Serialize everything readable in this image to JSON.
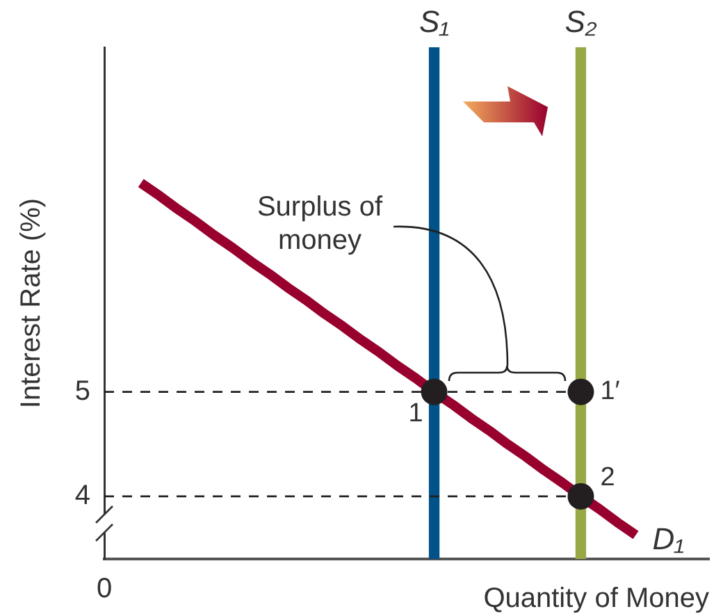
{
  "chart_data": {
    "type": "line",
    "xlabel": "Quantity of Money",
    "ylabel": "Interest Rate (%)",
    "annotations": [
      "Surplus of money"
    ],
    "categories": [
      "0",
      null,
      null,
      null,
      null,
      null,
      null,
      null,
      null,
      null,
      null,
      null,
      null,
      null,
      null,
      null,
      null,
      null,
      null,
      null,
      null,
      null,
      null,
      null,
      null,
      null,
      null,
      null,
      null,
      null,
      null,
      null,
      null,
      null
    ],
    "ylim": [
      3.4,
      8.3
    ],
    "yticks": [
      4,
      5
    ],
    "series": [
      {
        "name": "S₁",
        "type": "bar",
        "color": "#005288",
        "values": [
          null,
          null,
          null,
          null,
          null,
          null,
          null,
          null,
          null,
          null,
          null,
          null,
          null,
          null,
          null,
          null,
          null,
          null,
          8.3,
          null,
          null,
          null,
          null,
          null,
          null,
          null,
          null,
          null,
          null,
          null,
          null,
          null,
          null,
          null
        ]
      },
      {
        "name": "S₂",
        "type": "bar",
        "color": "#97a846",
        "values": [
          null,
          null,
          null,
          null,
          null,
          null,
          null,
          null,
          null,
          null,
          null,
          null,
          null,
          null,
          null,
          null,
          null,
          null,
          null,
          null,
          null,
          null,
          null,
          null,
          null,
          null,
          8.3,
          null,
          null,
          null,
          null,
          null,
          null,
          null
        ]
      },
      {
        "color": "#231f20",
        "line_style": "dashed",
        "values": [
          5,
          5,
          5,
          5,
          5,
          5,
          5,
          5,
          5,
          5,
          5,
          5,
          5,
          5,
          5,
          5,
          5,
          5,
          5,
          5,
          5,
          5,
          5,
          5,
          5,
          5,
          5,
          null,
          null,
          null,
          null,
          null,
          null,
          null
        ]
      },
      {
        "color": "#231f20",
        "line_style": "dashed",
        "values": [
          4,
          4,
          4,
          4,
          4,
          4,
          4,
          4,
          4,
          4,
          4,
          4,
          4,
          4,
          4,
          4,
          4,
          4,
          4,
          4,
          4,
          4,
          4,
          4,
          4,
          4,
          4,
          null,
          null,
          null,
          null,
          null,
          null,
          null
        ]
      },
      {
        "name": "D₁",
        "color": "#98002e",
        "values": [
          null,
          null,
          7.0,
          6.88,
          6.75,
          6.63,
          6.5,
          6.38,
          6.25,
          6.13,
          6.0,
          5.88,
          5.75,
          5.63,
          5.5,
          5.38,
          5.25,
          5.13,
          5,
          4.88,
          4.75,
          4.63,
          4.5,
          4.38,
          4.25,
          4.13,
          4,
          3.88,
          3.75,
          3.63,
          null,
          null,
          null,
          null
        ]
      },
      {
        "name": "1",
        "type": "scatter",
        "marker": "circle",
        "color": "#231f20",
        "values": [
          null,
          null,
          null,
          null,
          null,
          null,
          null,
          null,
          null,
          null,
          null,
          null,
          null,
          null,
          null,
          null,
          null,
          null,
          5,
          null,
          null,
          null,
          null,
          null,
          null,
          null,
          null,
          null,
          null,
          null,
          null,
          null,
          null,
          null
        ]
      },
      {
        "name": "1′",
        "type": "scatter",
        "marker": "circle",
        "color": "#231f20",
        "values": [
          null,
          null,
          null,
          null,
          null,
          null,
          null,
          null,
          null,
          null,
          null,
          null,
          null,
          null,
          null,
          null,
          null,
          null,
          null,
          null,
          null,
          null,
          null,
          null,
          null,
          null,
          5,
          null,
          null,
          null,
          null,
          null,
          null,
          null
        ]
      },
      {
        "name": "2",
        "type": "scatter",
        "marker": "circle",
        "color": "#231f20",
        "values": [
          null,
          null,
          null,
          null,
          null,
          null,
          null,
          null,
          null,
          null,
          null,
          null,
          null,
          null,
          null,
          null,
          null,
          null,
          null,
          null,
          null,
          null,
          null,
          null,
          null,
          null,
          4,
          null,
          null,
          null,
          null,
          null,
          null,
          null
        ]
      }
    ]
  }
}
